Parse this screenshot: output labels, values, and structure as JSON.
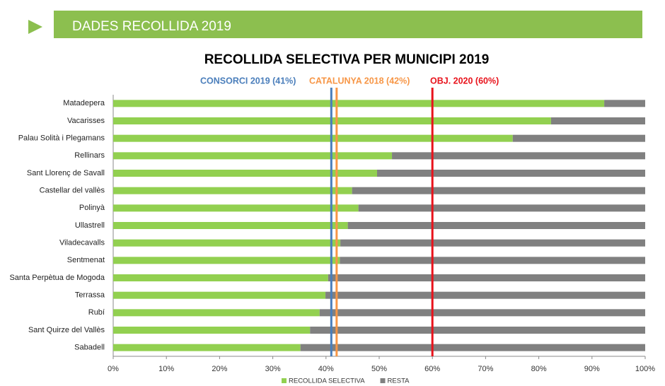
{
  "header": {
    "title": "DADES RECOLLIDA 2019"
  },
  "chart_data": {
    "type": "stacked_bar_horizontal",
    "title": "RECOLLIDA SELECTIVA PER MUNICIPI 2019",
    "categories": [
      "Matadepera",
      "Vacarisses",
      "Palau Solità i Plegamans",
      "Rellinars",
      "Sant Llorenç de Savall",
      "Castellar del vallès",
      "Polinyà",
      "Ullastrell",
      "Viladecavalls",
      "Sentmenat",
      "Santa Perpètua de Mogoda",
      "Terrassa",
      "Rubí",
      "Sant Quirze del Vallès",
      "Sabadell"
    ],
    "series": [
      {
        "name": "RECOLLIDA SELECTIVA",
        "color": "#92d050",
        "values": [
          92.3,
          82.3,
          75.1,
          52.4,
          49.6,
          44.9,
          46.1,
          44.1,
          42.7,
          42.6,
          40.4,
          39.9,
          38.8,
          37,
          35.2
        ]
      },
      {
        "name": "RESTA",
        "color": "#808080",
        "values": [
          7.7,
          17.7,
          24.9,
          47.6,
          50.4,
          55.1,
          53.9,
          55.9,
          57.3,
          57.4,
          59.6,
          60.1,
          61.2,
          63,
          64.8
        ]
      }
    ],
    "xlim": [
      0,
      100
    ],
    "xticks": [
      {
        "value": 0,
        "label": "0%"
      },
      {
        "value": 10,
        "label": "10%"
      },
      {
        "value": 20,
        "label": "20%"
      },
      {
        "value": 30,
        "label": "30%"
      },
      {
        "value": 40,
        "label": "40%"
      },
      {
        "value": 50,
        "label": "50%"
      },
      {
        "value": 60,
        "label": "60%"
      },
      {
        "value": 70,
        "label": "70%"
      },
      {
        "value": 80,
        "label": "80%"
      },
      {
        "value": 90,
        "label": "90%"
      },
      {
        "value": 100,
        "label": "100%"
      }
    ],
    "reference_lines": [
      {
        "label": "CONSORCI 2019 (41%)",
        "value": 41,
        "color": "#4a7ebb"
      },
      {
        "label": "CATALUNYA 2018 (42%)",
        "value": 42,
        "color": "#f79646"
      },
      {
        "label": "OBJ. 2020 (60%)",
        "value": 60,
        "color": "#e8121b"
      }
    ],
    "legend": "bottom"
  }
}
